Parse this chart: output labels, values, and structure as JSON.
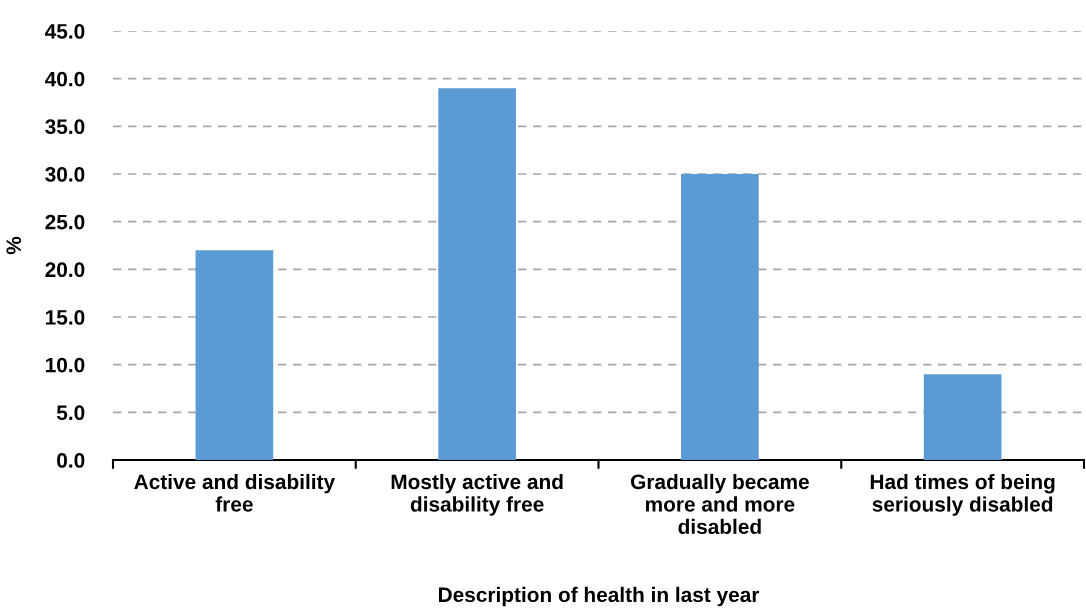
{
  "chart_data": {
    "type": "bar",
    "categories": [
      "Active and disability\nfree",
      "Mostly active and\ndisability free",
      "Gradually became\nmore and more\ndisabled",
      "Had times of being\nseriously disabled"
    ],
    "values": [
      22.0,
      39.0,
      30.0,
      9.0
    ],
    "color": "#5b9bd5",
    "xlabel": "Description of health in last year",
    "ylabel": "%",
    "ylim": [
      0,
      45
    ],
    "yticks": [
      {
        "value": 0,
        "label": "0.0"
      },
      {
        "value": 5,
        "label": "5.0"
      },
      {
        "value": 10,
        "label": "10.0"
      },
      {
        "value": 15,
        "label": "15.0"
      },
      {
        "value": 20,
        "label": "20.0"
      },
      {
        "value": 25,
        "label": "25.0"
      },
      {
        "value": 30,
        "label": "30.0"
      },
      {
        "value": 35,
        "label": "35.0"
      },
      {
        "value": 40,
        "label": "40.0"
      },
      {
        "value": 45,
        "label": "45.0"
      }
    ],
    "grid": "y",
    "line_style": "dashed"
  }
}
